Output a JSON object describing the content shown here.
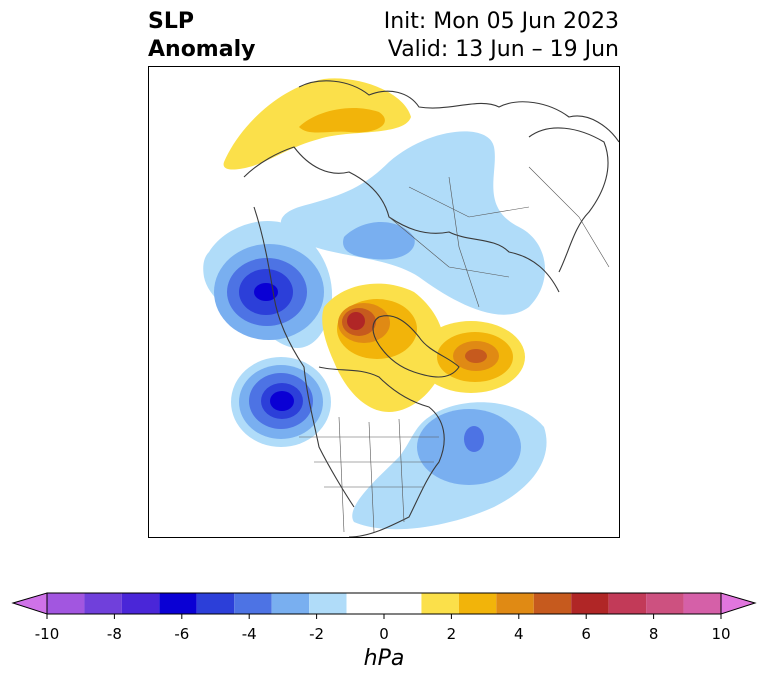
{
  "title": {
    "left_line1": "SLP",
    "left_line2": "Anomaly",
    "init": "Init: Mon 05 Jun 2023",
    "valid": "Valid: 13 Jun – 19 Jun"
  },
  "colorbar": {
    "unit": "hPa",
    "tick_labels": [
      "-10",
      "-8",
      "-6",
      "-4",
      "-2",
      "0",
      "2",
      "4",
      "6",
      "8",
      "10"
    ],
    "levels": [
      -10,
      -9,
      -8,
      -7,
      -6,
      -5,
      -4,
      -3,
      -2,
      -1,
      1,
      2,
      3,
      4,
      5,
      6,
      7,
      8,
      9,
      10
    ],
    "colors": [
      "#cf72e8",
      "#a256e0",
      "#7040db",
      "#4a26d8",
      "#0a00d4",
      "#2c3fd9",
      "#4d73e4",
      "#79aff0",
      "#b0dcf9",
      "#ffffff",
      "#fbe04a",
      "#f2b40a",
      "#e08a14",
      "#c65a1e",
      "#b02626",
      "#c23a58",
      "#cd5180",
      "#d560a8",
      "#e176de"
    ]
  },
  "anomaly_centers": [
    {
      "type": "high",
      "peak": 3
    },
    {
      "type": "low",
      "peak": -2
    },
    {
      "type": "low",
      "peak": -7
    },
    {
      "type": "high",
      "peak": 6
    },
    {
      "type": "high",
      "peak": 5
    },
    {
      "type": "low",
      "peak": -7
    },
    {
      "type": "low",
      "peak": -4
    }
  ]
}
